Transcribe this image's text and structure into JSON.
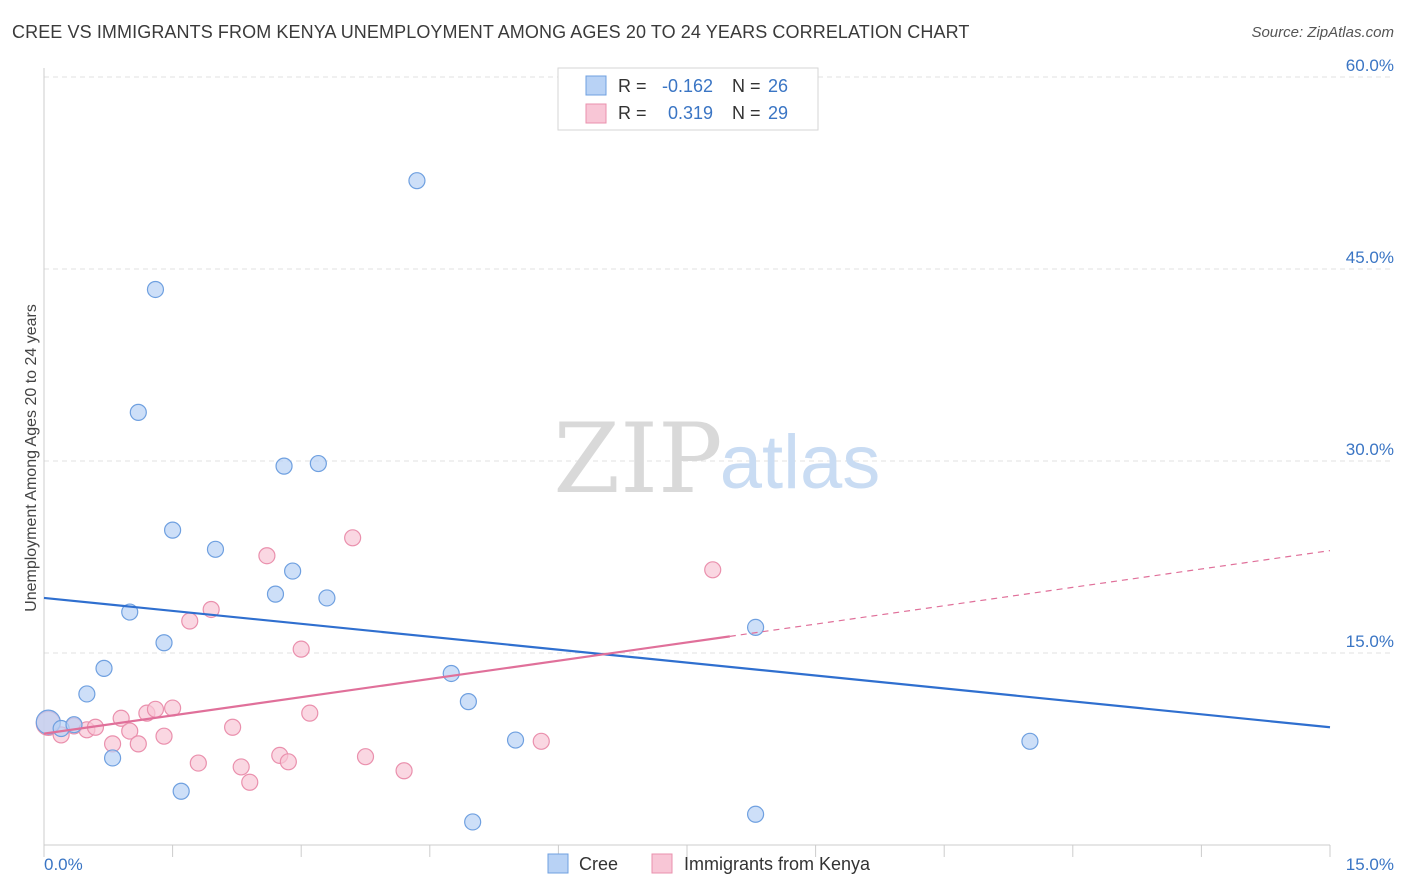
{
  "header": {
    "title": "CREE VS IMMIGRANTS FROM KENYA UNEMPLOYMENT AMONG AGES 20 TO 24 YEARS CORRELATION CHART",
    "source": "Source: ZipAtlas.com"
  },
  "watermark": {
    "zip": "ZIP",
    "atlas": "atlas"
  },
  "legend_stats": [
    {
      "r_label": "R =",
      "r_value": "-0.162",
      "n_label": "N =",
      "n_value": "26"
    },
    {
      "r_label": "R =",
      "r_value": "0.319",
      "n_label": "N =",
      "n_value": "29"
    }
  ],
  "chart_data": {
    "type": "scatter",
    "title": "CREE VS IMMIGRANTS FROM KENYA UNEMPLOYMENT AMONG AGES 20 TO 24 YEARS CORRELATION CHART",
    "xlabel": "",
    "ylabel": "Unemployment Among Ages 20 to 24 years",
    "xlim": [
      0,
      15
    ],
    "ylim": [
      0,
      60
    ],
    "x_tick_labels": [
      "0.0%",
      "15.0%"
    ],
    "y_tick_values": [
      15,
      30,
      45,
      60
    ],
    "y_tick_labels": [
      "15.0%",
      "30.0%",
      "45.0%",
      "60.0%"
    ],
    "grid": true,
    "legend_position": "bottom-center",
    "colors": {
      "cree_fill": "#b8d2f5",
      "cree_stroke": "#6fa0e0",
      "cree_line": "#2f6fcf",
      "kenya_fill": "#f8c6d6",
      "kenya_stroke": "#ea90ad",
      "kenya_line": "#e0709a",
      "axis_label": "#3a75c4"
    },
    "series": [
      {
        "name": "Cree",
        "r": -0.162,
        "n": 26,
        "trend": {
          "x0": 0,
          "y0": 19.3,
          "x1": 15,
          "y1": 9.2
        },
        "points": [
          [
            0.05,
            9.6
          ],
          [
            0.2,
            9.1
          ],
          [
            0.35,
            9.4
          ],
          [
            0.5,
            11.8
          ],
          [
            0.7,
            13.8
          ],
          [
            0.8,
            6.8
          ],
          [
            1.0,
            18.2
          ],
          [
            1.1,
            33.8
          ],
          [
            1.3,
            43.4
          ],
          [
            1.4,
            15.8
          ],
          [
            1.5,
            24.6
          ],
          [
            1.6,
            4.2
          ],
          [
            2.0,
            23.1
          ],
          [
            2.7,
            19.6
          ],
          [
            2.8,
            29.6
          ],
          [
            2.9,
            21.4
          ],
          [
            3.2,
            29.8
          ],
          [
            3.3,
            19.3
          ],
          [
            4.35,
            51.9
          ],
          [
            4.75,
            13.4
          ],
          [
            4.95,
            11.2
          ],
          [
            5.0,
            1.8
          ],
          [
            5.5,
            8.2
          ],
          [
            8.3,
            2.4
          ],
          [
            8.3,
            17.0
          ],
          [
            11.5,
            8.1
          ]
        ]
      },
      {
        "name": "Immigrants from Kenya",
        "r": 0.319,
        "n": 29,
        "trend": {
          "x0": 0,
          "y0": 8.7,
          "x1": 8.0,
          "y1": 16.3
        },
        "trend_extended": {
          "x0": 8.0,
          "y0": 16.3,
          "x1": 15,
          "y1": 23.0
        },
        "points": [
          [
            0.05,
            9.5
          ],
          [
            0.2,
            8.6
          ],
          [
            0.35,
            9.3
          ],
          [
            0.5,
            9.0
          ],
          [
            0.6,
            9.2
          ],
          [
            0.8,
            7.9
          ],
          [
            0.9,
            9.9
          ],
          [
            1.0,
            8.9
          ],
          [
            1.1,
            7.9
          ],
          [
            1.2,
            10.3
          ],
          [
            1.3,
            10.6
          ],
          [
            1.4,
            8.5
          ],
          [
            1.5,
            10.7
          ],
          [
            1.7,
            17.5
          ],
          [
            1.8,
            6.4
          ],
          [
            1.95,
            18.4
          ],
          [
            2.2,
            9.2
          ],
          [
            2.3,
            6.1
          ],
          [
            2.4,
            4.9
          ],
          [
            2.6,
            22.6
          ],
          [
            2.75,
            7.0
          ],
          [
            2.85,
            6.5
          ],
          [
            3.0,
            15.3
          ],
          [
            3.1,
            10.3
          ],
          [
            3.6,
            24.0
          ],
          [
            3.75,
            6.9
          ],
          [
            4.2,
            5.8
          ],
          [
            5.8,
            8.1
          ],
          [
            7.8,
            21.5
          ]
        ]
      }
    ]
  },
  "bottom_legend": {
    "cree": "Cree",
    "kenya": "Immigrants from Kenya"
  }
}
